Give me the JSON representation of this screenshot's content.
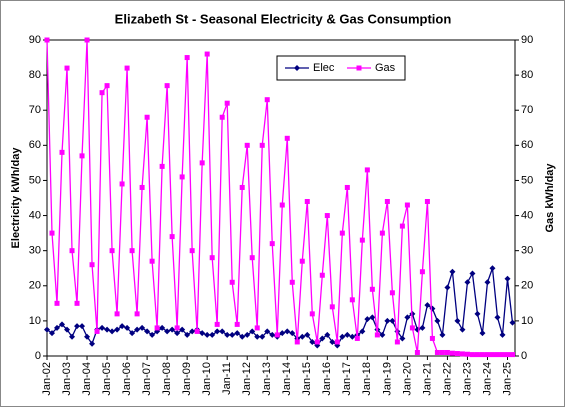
{
  "chart_data": {
    "type": "line",
    "title": "Elizabeth St - Seasonal Electricity & Gas Consumption",
    "y_label": "Electricity kWh/day",
    "y2_label": "Gas kWh/day",
    "categories": [
      "Jan-02",
      null,
      null,
      null,
      "Jan-03",
      null,
      null,
      null,
      "Jan-04",
      null,
      null,
      null,
      "Jan-05",
      null,
      null,
      null,
      "Jan-06",
      null,
      null,
      null,
      "Jan-07",
      null,
      null,
      null,
      "Jan-08",
      null,
      null,
      null,
      "Jan-09",
      null,
      null,
      null,
      "Jan-10",
      null,
      null,
      null,
      "Jan-11",
      null,
      null,
      null,
      "Jan-12",
      null,
      null,
      null,
      "Jan-13",
      null,
      null,
      null,
      "Jan-14",
      null,
      null,
      null,
      "Jan-15",
      null,
      null,
      null,
      "Jan-16",
      null,
      null,
      null,
      "Jan-17",
      null,
      null,
      null,
      "Jan-18",
      null,
      null,
      null,
      "Jan-19",
      null,
      null,
      null,
      "Jan-20",
      null,
      null,
      null,
      "Jan-21",
      null,
      null,
      null,
      "Jan-22",
      null,
      null,
      null,
      "Jan-23",
      null,
      null,
      null,
      "Jan-24",
      null,
      null,
      null,
      "Jan-25",
      null
    ],
    "series": [
      {
        "name": "Elec",
        "color": "#000080",
        "marker": "diamond",
        "values": [
          7.5,
          6.5,
          8,
          9,
          7.5,
          5.5,
          8.5,
          8.5,
          5.5,
          3.5,
          7.5,
          8,
          7.5,
          7,
          7.5,
          8.5,
          8,
          6.5,
          7.5,
          8,
          7,
          6,
          7,
          8,
          7,
          7.5,
          6.5,
          7.5,
          6,
          7,
          7.5,
          6.5,
          6,
          6,
          7,
          7,
          6,
          6,
          6.5,
          5.5,
          6,
          7,
          5.5,
          5.5,
          7,
          6,
          5.5,
          6.5,
          7,
          6.5,
          5,
          5.5,
          6,
          4,
          3,
          5,
          6,
          4,
          3,
          5.5,
          6,
          5.5,
          6,
          7,
          10.5,
          11,
          7.5,
          6,
          10,
          10,
          7,
          5,
          11,
          12,
          7.5,
          8,
          14.5,
          13.5,
          10,
          6,
          19.5,
          24,
          10,
          7.5,
          21,
          23.5,
          12,
          6.5,
          21,
          25,
          11,
          6,
          22,
          9.5
        ]
      },
      {
        "name": "Gas",
        "color": "#ff00ff",
        "marker": "square",
        "axis": "y2",
        "values": [
          90,
          35,
          15,
          58,
          82,
          30,
          15,
          57,
          90,
          26,
          7,
          75,
          77,
          30,
          12,
          49,
          82,
          30,
          12,
          48,
          68,
          27,
          8,
          54,
          77,
          34,
          8,
          51,
          85,
          30,
          7,
          55,
          86,
          28,
          9,
          68,
          72,
          21,
          9,
          48,
          60,
          28,
          8,
          60,
          73,
          32,
          6,
          43,
          62,
          21,
          4,
          27,
          44,
          12,
          4,
          23,
          40,
          14,
          4,
          35,
          48,
          16,
          5,
          33,
          53,
          19,
          6,
          35,
          44,
          18,
          4,
          37,
          43,
          8,
          1,
          24,
          44,
          5,
          1,
          1,
          1,
          0.8,
          0.7,
          0.6,
          0.5,
          0.4,
          0.4,
          0.4,
          0.4,
          0.4,
          0.4,
          0.4,
          0.4,
          0.4
        ]
      }
    ],
    "ylim": [
      0,
      90
    ],
    "yticks": [
      0,
      10,
      20,
      30,
      40,
      50,
      60,
      70,
      80,
      90
    ],
    "y2lim": [
      0,
      90
    ],
    "y2ticks": [
      0,
      10,
      20,
      30,
      40,
      50,
      60,
      70,
      80,
      90
    ],
    "legend": "top-right"
  }
}
